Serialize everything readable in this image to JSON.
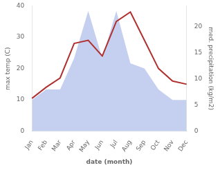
{
  "chart_data": {
    "type": "line",
    "categories": [
      "Jan",
      "Feb",
      "Mar",
      "Apr",
      "May",
      "Jun",
      "Jul",
      "Aug",
      "Sep",
      "Oct",
      "Nov",
      "Dec"
    ],
    "series": [
      {
        "type": "area",
        "color": "#c5cff0",
        "axis": "y2",
        "values": [
          6,
          8,
          8,
          14,
          23,
          14,
          23,
          13,
          12,
          8,
          6,
          6
        ]
      },
      {
        "type": "line",
        "color": "#b03030",
        "values": [
          10.5,
          14,
          17,
          28,
          29,
          24,
          35,
          38,
          29,
          20,
          16,
          15
        ]
      }
    ],
    "xlabel": "date (month)",
    "ylabel": "max temp (C)",
    "y2label": "med. precipitation (kg/m2)",
    "ylim": [
      0,
      40
    ],
    "yticks": [
      0,
      10,
      20,
      30,
      40
    ],
    "y2lim": [
      0,
      24
    ],
    "y2ticks": [
      0,
      5,
      10,
      15,
      20
    ],
    "grid": false
  }
}
